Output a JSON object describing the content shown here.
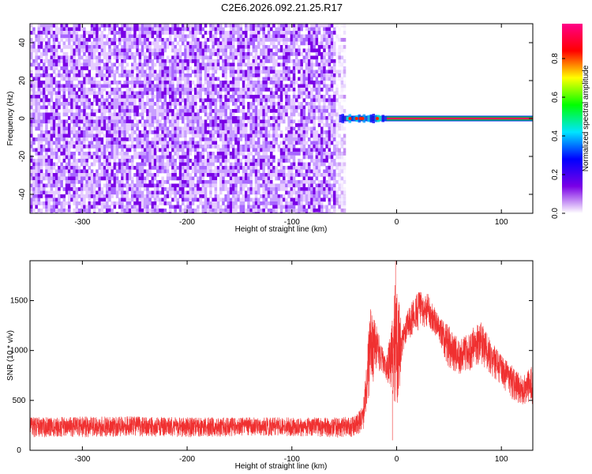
{
  "figure_title": "C2E6.2026.092.21.25.R17",
  "chart_data": [
    {
      "type": "heatmap",
      "name": "spectrogram",
      "xlabel": "Height of straight line (km)",
      "ylabel": "Frequency (Hz)",
      "xlim": [
        -350,
        130
      ],
      "ylim": [
        -50,
        50
      ],
      "xticks": [
        -300,
        -200,
        -100,
        0,
        100
      ],
      "xtick_labels": [
        "-300",
        "-200",
        "-100",
        "0",
        "100"
      ],
      "yticks": [
        -40,
        -20,
        0,
        20,
        40
      ],
      "ytick_labels": [
        "-40",
        "-20",
        "0",
        "20",
        "40"
      ],
      "noise_region_x": [
        -350,
        -50
      ],
      "signal": {
        "frequency": 0,
        "x_start": -52,
        "x_end": 130,
        "core_amplitude": 0.95,
        "near_field_amplitude": 0.35
      },
      "colorbar": {
        "label": "Normalized spectral amplitude",
        "range": [
          0,
          0.98
        ],
        "ticks": [
          0.0,
          0.2,
          0.4,
          0.6,
          0.8
        ],
        "tick_labels": [
          "0.0",
          "0.2",
          "0.4",
          "0.6",
          "0.8"
        ],
        "colormap": [
          "#ffffff",
          "#7a00e6",
          "#0000ff",
          "#00e5ff",
          "#00ff00",
          "#ffff00",
          "#ff0000",
          "#ff0088"
        ]
      },
      "grid": false
    },
    {
      "type": "line",
      "name": "snr",
      "xlabel": "Height of straight line (km)",
      "ylabel": "SNR (10 * v/v)",
      "xlim": [
        -350,
        130
      ],
      "ylim": [
        0,
        1900
      ],
      "xticks": [
        -300,
        -200,
        -100,
        0,
        100
      ],
      "xtick_labels": [
        "-300",
        "-200",
        "-100",
        "0",
        "100"
      ],
      "yticks": [
        0,
        500,
        1000,
        1500
      ],
      "ytick_labels": [
        "0",
        "500",
        "1000",
        "1500"
      ],
      "color": "#f03030",
      "envelope": {
        "x": [
          -350,
          -300,
          -250,
          -200,
          -150,
          -100,
          -60,
          -40,
          -32,
          -25,
          -18,
          -10,
          -5,
          0,
          5,
          10,
          20,
          30,
          40,
          50,
          60,
          70,
          80,
          90,
          100,
          110,
          120,
          130
        ],
        "upper": [
          330,
          340,
          340,
          330,
          330,
          330,
          330,
          340,
          450,
          1450,
          1200,
          900,
          1300,
          1850,
          1200,
          1400,
          1600,
          1580,
          1350,
          1250,
          1100,
          1200,
          1300,
          1100,
          950,
          850,
          750,
          850
        ],
        "lower": [
          130,
          130,
          140,
          130,
          140,
          140,
          130,
          130,
          200,
          600,
          800,
          700,
          600,
          300,
          900,
          1100,
          1200,
          1250,
          1100,
          800,
          750,
          800,
          850,
          750,
          650,
          500,
          450,
          400
        ],
        "spikes": [
          {
            "x": -1,
            "y": 1900
          },
          {
            "x": -4,
            "y": 100
          }
        ]
      },
      "grid": false
    }
  ]
}
